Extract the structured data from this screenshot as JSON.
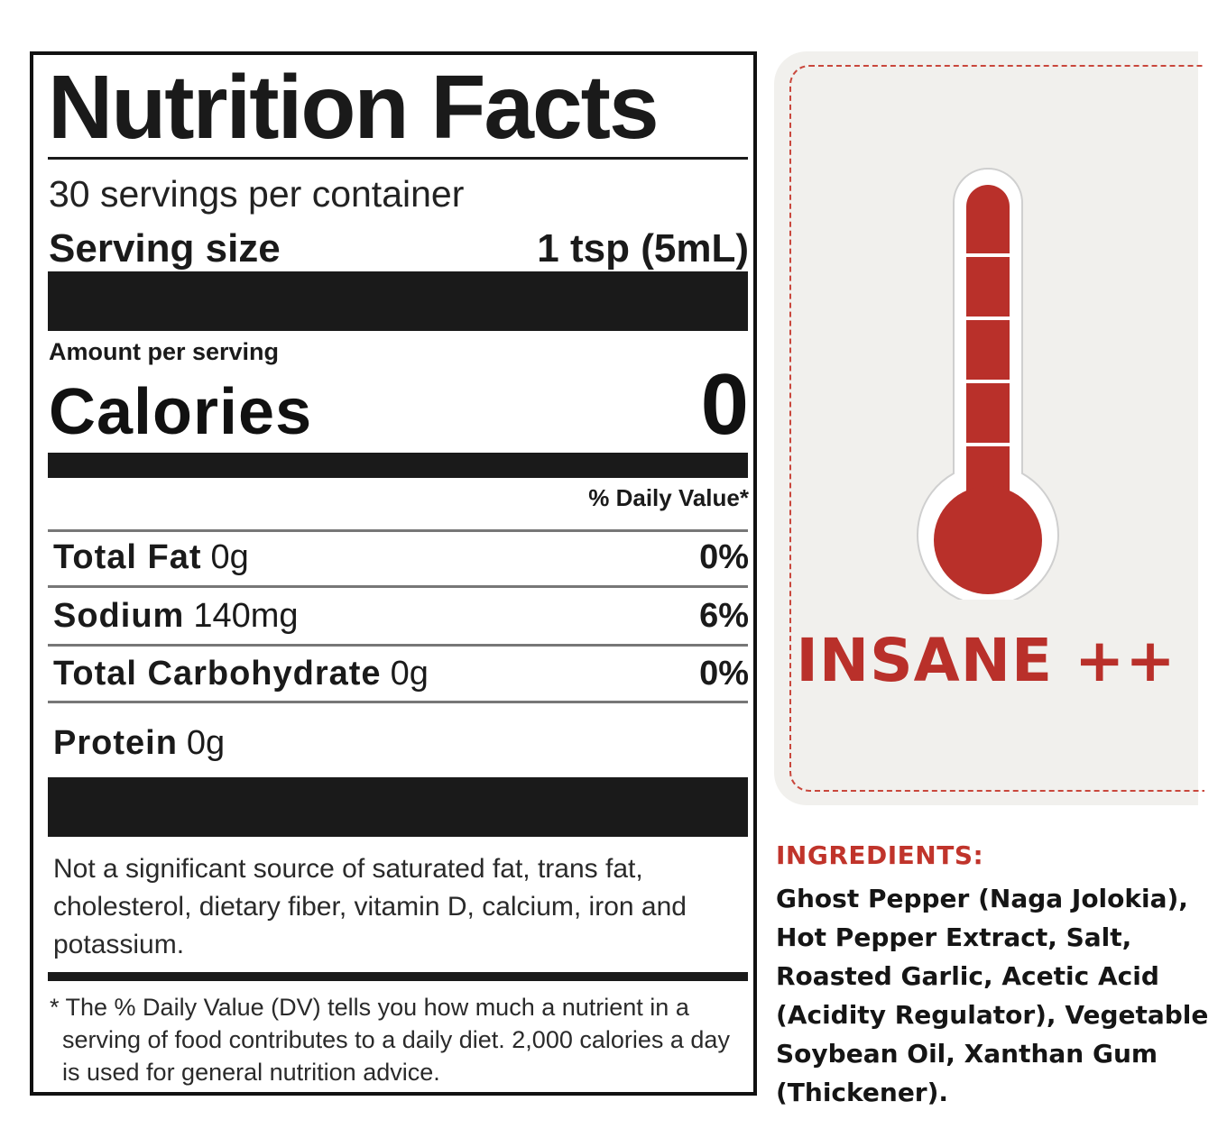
{
  "label": {
    "title": "Nutrition Facts",
    "servings_per_container": "30 servings per container",
    "serving_size_label": "Serving size",
    "serving_size_value": "1 tsp (5mL)",
    "amount_per_serving": "Amount per serving",
    "calories_label": "Calories",
    "calories_value": "0",
    "daily_value_header": "% Daily Value*",
    "nutrients": [
      {
        "name": "Total Fat",
        "amount": "0g",
        "dv": "0%"
      },
      {
        "name": "Sodium",
        "amount": "140mg",
        "dv": "6%"
      },
      {
        "name": "Total Carbohydrate",
        "amount": "0g",
        "dv": "0%"
      },
      {
        "name": "Protein",
        "amount": "0g",
        "dv": ""
      }
    ],
    "disclaimer": "Not a significant source of saturated fat, trans fat, cholesterol, dietary fiber, vitamin D, calcium, iron and potassium.",
    "footnote": "* The % Daily Value (DV) tells you how much a nutrient in a serving of food contributes to a daily diet. 2,000 calories a day is used for general nutrition advice."
  },
  "heat": {
    "level_text": "INSANE ++",
    "thermometer_icon": "thermometer-icon",
    "accent_color": "#b9302a"
  },
  "ingredients": {
    "title": "INGREDIENTS:",
    "text": "Ghost Pepper (Naga Jolokia), Hot Pepper Extract, Salt, Roasted Garlic, Acetic Acid (Acidity Regulator), Vegetable Soybean Oil, Xanthan Gum (Thickener)."
  }
}
